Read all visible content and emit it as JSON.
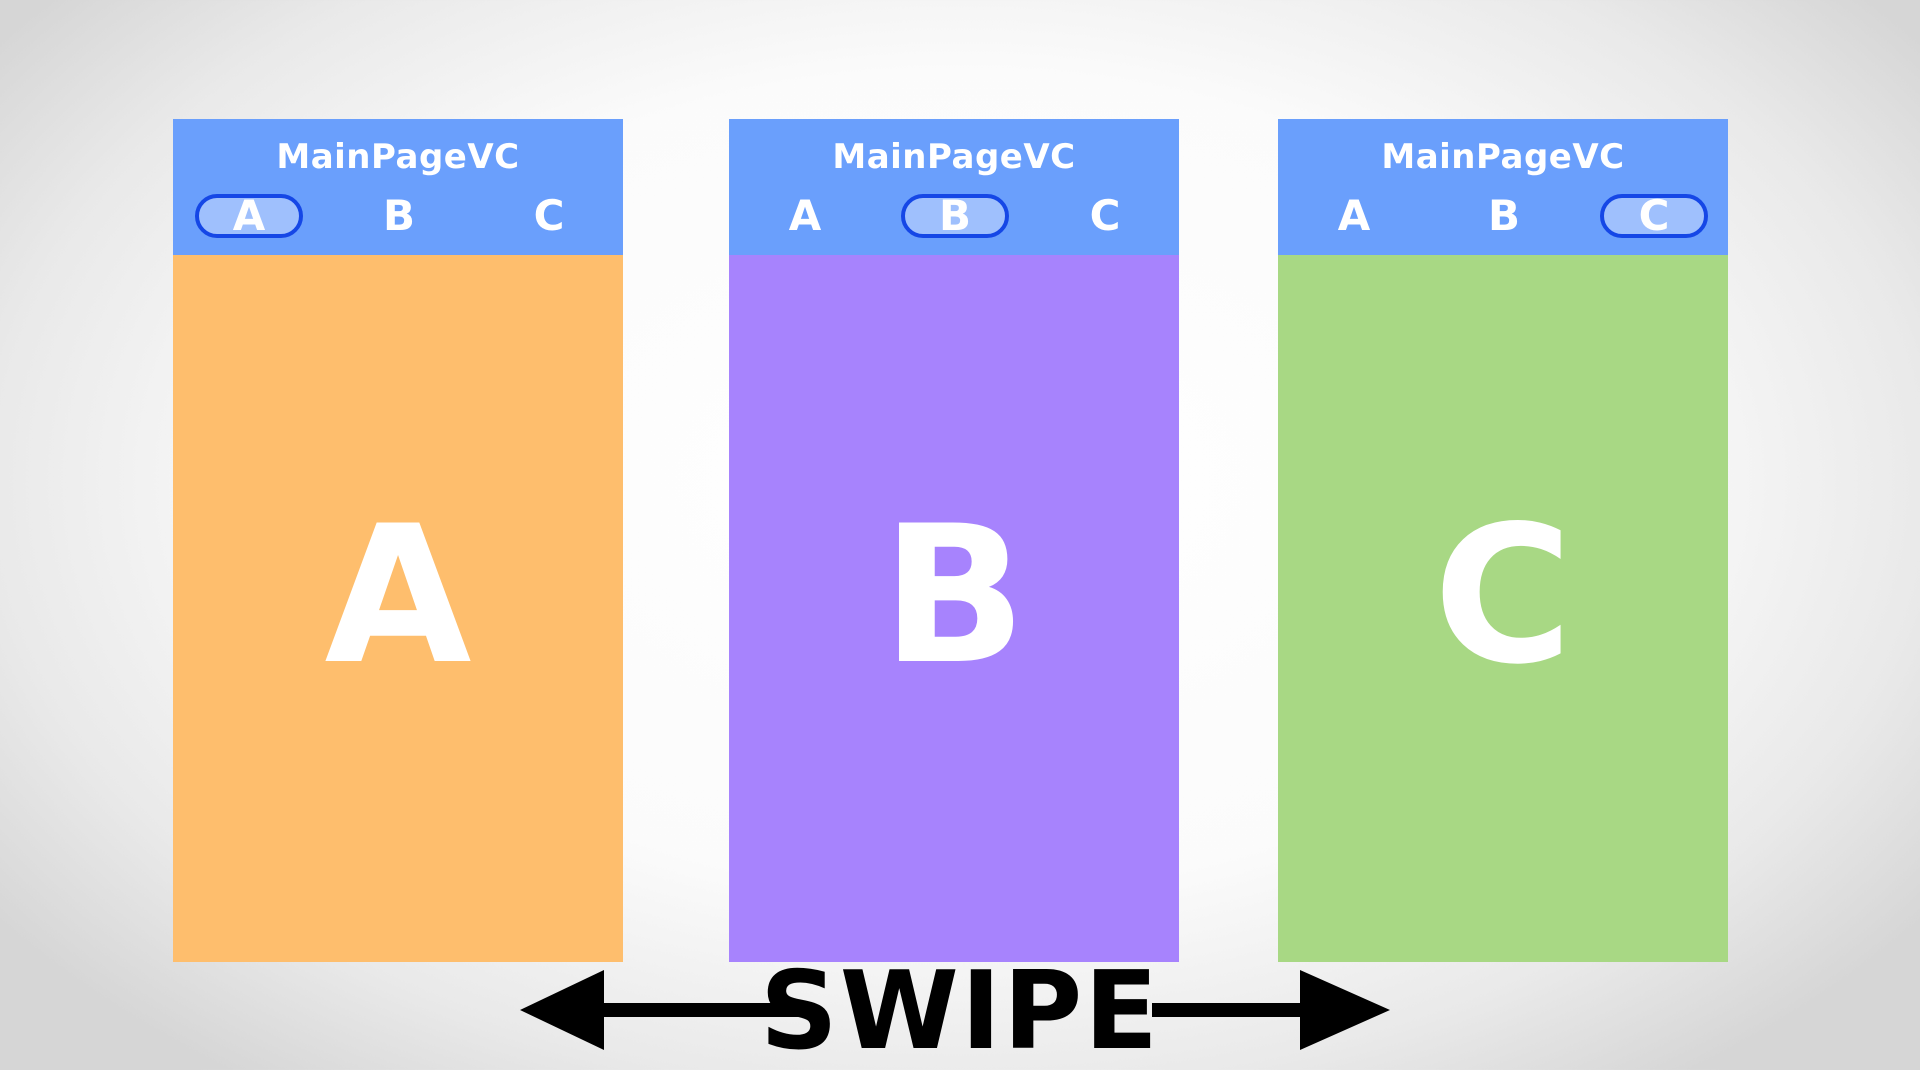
{
  "panels": [
    {
      "title": "MainPageVC",
      "tabs": [
        "A",
        "B",
        "C"
      ],
      "selected_tab": "A",
      "content_letter": "A",
      "color": "#febe6d"
    },
    {
      "title": "MainPageVC",
      "tabs": [
        "A",
        "B",
        "C"
      ],
      "selected_tab": "B",
      "content_letter": "B",
      "color": "#a783fd"
    },
    {
      "title": "MainPageVC",
      "tabs": [
        "A",
        "B",
        "C"
      ],
      "selected_tab": "C",
      "content_letter": "C",
      "color": "#a8d884"
    }
  ],
  "swipe": {
    "label": "SWIPE",
    "icon": "double-arrow-icon"
  },
  "colors": {
    "header": "#6a9ffc",
    "selected_tab_fill": "#9fc0fd",
    "selected_tab_border": "#1547e6"
  }
}
